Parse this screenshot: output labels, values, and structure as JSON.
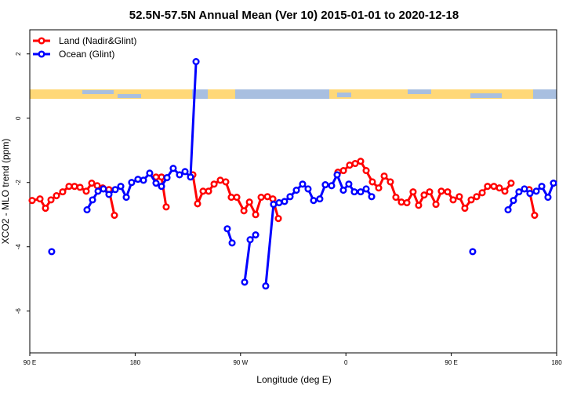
{
  "chart_data": {
    "type": "line",
    "title": "52.5N-57.5N Annual Mean (Ver 10)   2015-01-01 to 2020-12-18",
    "x_label": "Longitude (deg E)",
    "y_label": "XCO2 - MLO trend (ppm)",
    "xlim": [
      90,
      540
    ],
    "ylim": [
      -7.3,
      2.75
    ],
    "xticks": [
      {
        "value": 90,
        "label": "90 E"
      },
      180,
      {
        "value": 270,
        "label": "90 W"
      },
      {
        "value": 360,
        "label": "0"
      },
      {
        "value": 450,
        "label": "90 E"
      },
      {
        "value": 540,
        "label": "180"
      }
    ],
    "yticks": [
      2,
      0,
      -2,
      -4,
      -6
    ],
    "legend": "top-left",
    "series": [
      {
        "name": "Land (Nadir&Glint)",
        "color": "#ff0000",
        "x": [
          92.0,
          98.7,
          103.4,
          108.1,
          112.8,
          118.1,
          123.5,
          128.2,
          132.9,
          138.2,
          142.9,
          147.6,
          152.3,
          157.6,
          162.3,
          null,
          197.8,
          202.5,
          206.5,
          null,
          229.3,
          233.3,
          238.0,
          242.7,
          247.4,
          252.7,
          257.4,
          262.1,
          266.8,
          272.9,
          277.6,
          282.9,
          287.6,
          293.0,
          297.6,
          302.3,
          null,
          353.2,
          357.9,
          363.2,
          367.9,
          372.6,
          377.3,
          382.6,
          388.0,
          392.7,
          398.0,
          402.7,
          407.4,
          412.1,
          417.4,
          422.1,
          426.8,
          431.5,
          436.9,
          441.5,
          446.9,
          451.6,
          456.9,
          461.6,
          467.0,
          471.7,
          476.4,
          481.0,
          486.4,
          491.1,
          495.8,
          501.1,
          null,
          516.5,
          521.2
        ],
        "values": [
          -2.56,
          -2.51,
          -2.8,
          -2.54,
          -2.41,
          -2.29,
          -2.12,
          -2.12,
          -2.15,
          -2.27,
          -2.02,
          -2.1,
          -2.17,
          -2.22,
          -3.02,
          null,
          -1.83,
          -1.83,
          -2.76,
          null,
          -1.76,
          -2.66,
          -2.27,
          -2.27,
          -2.05,
          -1.93,
          -1.98,
          -2.46,
          -2.46,
          -2.88,
          -2.61,
          -3.0,
          -2.46,
          -2.44,
          -2.51,
          -3.12,
          null,
          -1.68,
          -1.63,
          -1.46,
          -1.41,
          -1.34,
          -1.63,
          -1.98,
          -2.17,
          -1.8,
          -1.98,
          -2.46,
          -2.61,
          -2.63,
          -2.29,
          -2.71,
          -2.39,
          -2.29,
          -2.68,
          -2.27,
          -2.29,
          -2.54,
          -2.44,
          -2.8,
          -2.54,
          -2.44,
          -2.32,
          -2.12,
          -2.12,
          -2.17,
          -2.27,
          -2.02,
          null,
          -2.22,
          -3.02
        ]
      },
      {
        "name": "Ocean (Glint)",
        "color": "#0000ff",
        "x": [
          108.7,
          null,
          138.9,
          143.6,
          148.3,
          152.9,
          157.6,
          163.0,
          167.7,
          172.4,
          177.0,
          182.4,
          187.1,
          192.4,
          197.8,
          202.5,
          207.2,
          212.5,
          217.9,
          222.6,
          227.3,
          232.0,
          null,
          258.7,
          262.8,
          null,
          273.5,
          278.2,
          282.9,
          null,
          291.5,
          298.2,
          302.9,
          307.6,
          312.3,
          317.7,
          323.0,
          327.7,
          332.4,
          337.7,
          342.4,
          347.8,
          352.5,
          357.8,
          362.5,
          367.2,
          372.6,
          377.3,
          382.0,
          null,
          468.3,
          null,
          498.5,
          503.1,
          507.8,
          512.5,
          517.2,
          522.6,
          527.3,
          532.6,
          537.3
        ],
        "values": [
          -4.15,
          null,
          -2.85,
          -2.54,
          -2.27,
          -2.2,
          -2.37,
          -2.22,
          -2.12,
          -2.46,
          -2.0,
          -1.9,
          -1.93,
          -1.71,
          -2.02,
          -2.12,
          -1.85,
          -1.56,
          -1.76,
          -1.66,
          -1.83,
          1.76,
          null,
          -3.44,
          -3.88,
          null,
          -5.1,
          -3.78,
          -3.63,
          null,
          -5.22,
          -2.68,
          -2.63,
          -2.59,
          -2.44,
          -2.24,
          -2.05,
          -2.2,
          -2.56,
          -2.51,
          -2.07,
          -2.1,
          -1.76,
          -2.24,
          -2.05,
          -2.29,
          -2.29,
          -2.2,
          -2.44,
          null,
          -4.15,
          null,
          -2.85,
          -2.56,
          -2.29,
          -2.2,
          -2.34,
          -2.27,
          -2.12,
          -2.46,
          -2.02
        ]
      }
    ]
  }
}
